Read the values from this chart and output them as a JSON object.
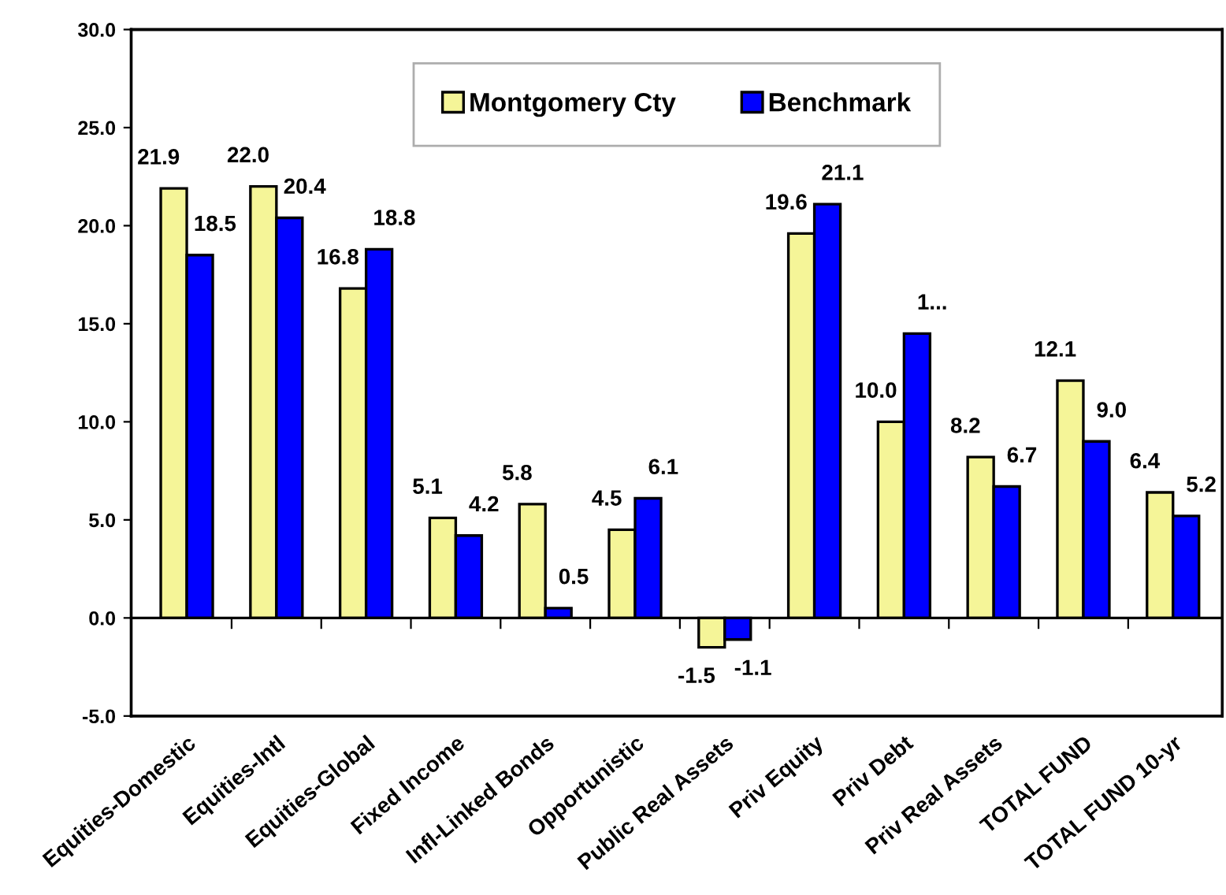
{
  "chart_data": {
    "type": "bar",
    "categories": [
      "Equities-Domestic",
      "Equities-Intl",
      "Equities-Global",
      "Fixed Income",
      "Infl-Linked Bonds",
      "Opportunistic",
      "Public Real Assets",
      "Priv Equity",
      "Priv Debt",
      "Priv Real Assets",
      "TOTAL FUND",
      "TOTAL FUND 10-yr"
    ],
    "series": [
      {
        "name": "Montgomery Cty",
        "color": "#f5f598",
        "values": [
          21.9,
          22.0,
          16.8,
          5.1,
          5.8,
          4.5,
          -1.5,
          19.6,
          10.0,
          8.2,
          12.1,
          6.4
        ],
        "value_labels": [
          "21.9",
          "22.0",
          "16.8",
          "5.1",
          "5.8",
          "4.5",
          "-1.5",
          "19.6",
          "10.0",
          "8.2",
          "12.1",
          "6.4"
        ]
      },
      {
        "name": "Benchmark",
        "color": "#0000ff",
        "values": [
          18.5,
          20.4,
          18.8,
          4.2,
          0.5,
          6.1,
          -1.1,
          21.1,
          14.5,
          6.7,
          9.0,
          5.2
        ],
        "value_labels": [
          "18.5",
          "20.4",
          "18.8",
          "4.2",
          "0.5",
          "6.1",
          "-1.1",
          "21.1",
          "1...",
          "6.7",
          "9.0",
          "5.2"
        ]
      }
    ],
    "ylim": [
      -5,
      30
    ],
    "yticks": [
      {
        "value": -5,
        "label": "-5.0"
      },
      {
        "value": 0,
        "label": "0.0"
      },
      {
        "value": 5,
        "label": "5.0"
      },
      {
        "value": 10,
        "label": "10.0"
      },
      {
        "value": 15,
        "label": "15.0"
      },
      {
        "value": 20,
        "label": "20.0"
      },
      {
        "value": 25,
        "label": "25.0"
      },
      {
        "value": 30,
        "label": "30.0"
      }
    ],
    "legend": "top"
  }
}
